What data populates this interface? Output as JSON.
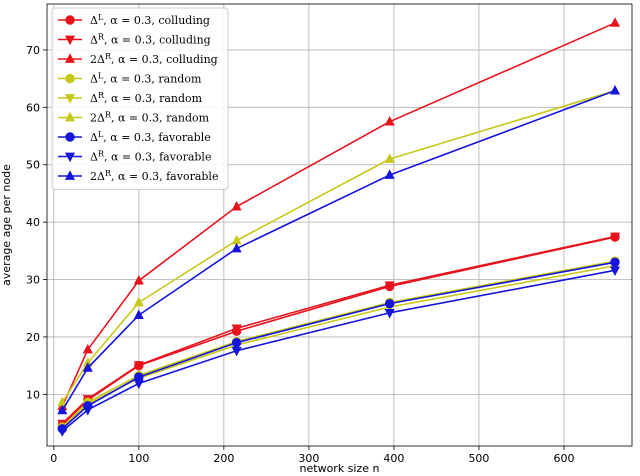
{
  "chart_data": {
    "type": "line",
    "xlabel": "network size n",
    "ylabel": "average age per node",
    "xlim": [
      -8,
      680
    ],
    "ylim": [
      1,
      78
    ],
    "xticks": [
      0,
      100,
      200,
      300,
      400,
      500,
      600
    ],
    "yticks": [
      10,
      20,
      30,
      40,
      50,
      60,
      70
    ],
    "grid": true,
    "legend_position": "top-left",
    "x": [
      10,
      40,
      100,
      215,
      395,
      660
    ],
    "series": [
      {
        "name": "ΔL, α = 0.3, colluding",
        "color": "#e8131c",
        "marker": "circle",
        "values": [
          4.7,
          9.0,
          15.0,
          21.0,
          28.8,
          37.4
        ]
      },
      {
        "name": "ΔR, α = 0.3, colluding",
        "color": "#e8131c",
        "marker": "triangle-down",
        "values": [
          4.9,
          9.2,
          15.1,
          21.5,
          29.0,
          37.5
        ]
      },
      {
        "name": "2ΔR, α = 0.3, colluding",
        "color": "#e8131c",
        "marker": "triangle-up",
        "values": [
          7.9,
          17.8,
          29.8,
          42.7,
          57.5,
          74.7
        ]
      },
      {
        "name": "ΔL, α = 0.3, random",
        "color": "#c8c81a",
        "marker": "circle",
        "values": [
          4.3,
          8.6,
          13.3,
          19.2,
          26.0,
          33.2
        ]
      },
      {
        "name": "ΔR, α = 0.3, random",
        "color": "#c8c81a",
        "marker": "triangle-down",
        "values": [
          4.1,
          8.3,
          12.8,
          18.6,
          25.2,
          32.4
        ]
      },
      {
        "name": "2ΔR, α = 0.3, random",
        "color": "#c8c81a",
        "marker": "triangle-up",
        "values": [
          8.6,
          15.5,
          26.0,
          36.8,
          51.0,
          62.9
        ]
      },
      {
        "name": "ΔL, α = 0.3, favorable",
        "color": "#1515dd",
        "marker": "circle",
        "values": [
          4.0,
          8.0,
          13.0,
          19.0,
          25.8,
          33.0
        ]
      },
      {
        "name": "ΔR, α = 0.3, favorable",
        "color": "#1515dd",
        "marker": "triangle-down",
        "values": [
          3.6,
          7.3,
          11.9,
          17.6,
          24.2,
          31.6
        ]
      },
      {
        "name": "2ΔR, α = 0.3, favorable",
        "color": "#1515dd",
        "marker": "triangle-up",
        "values": [
          7.2,
          14.6,
          23.8,
          35.4,
          48.2,
          62.9
        ]
      }
    ],
    "legend_entries": [
      {
        "symbol": "Δ",
        "sup": "L",
        "rest": ", α = 0.3, colluding"
      },
      {
        "symbol": "Δ",
        "sup": "R",
        "rest": ", α = 0.3, colluding"
      },
      {
        "symbol": "2Δ",
        "sup": "R",
        "rest": ", α = 0.3, colluding"
      },
      {
        "symbol": "Δ",
        "sup": "L",
        "rest": ", α = 0.3, random"
      },
      {
        "symbol": "Δ",
        "sup": "R",
        "rest": ", α = 0.3, random"
      },
      {
        "symbol": "2Δ",
        "sup": "R",
        "rest": ", α = 0.3, random"
      },
      {
        "symbol": "Δ",
        "sup": "L",
        "rest": ", α = 0.3, favorable"
      },
      {
        "symbol": "Δ",
        "sup": "R",
        "rest": ", α = 0.3, favorable"
      },
      {
        "symbol": "2Δ",
        "sup": "R",
        "rest": ", α = 0.3, favorable"
      }
    ]
  }
}
